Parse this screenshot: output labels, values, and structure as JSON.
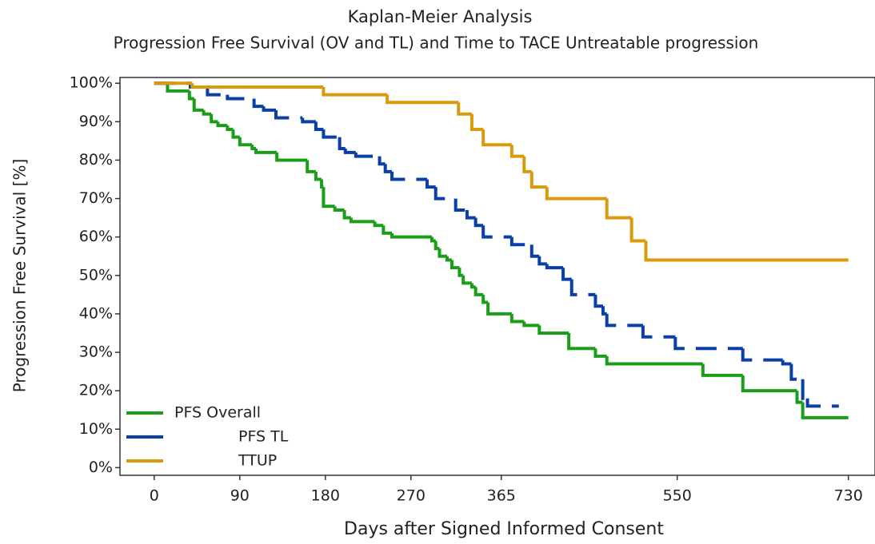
{
  "chart_data": {
    "type": "step",
    "title": "Kaplan-Meier Analysis",
    "subtitle": "Progression Free Survival (OV and TL) and  Time to TACE Untreatable progression",
    "x_label": "Days after Signed Informed Consent",
    "y_label": "Progression Free Survival [%]",
    "xlim": [
      -36,
      758
    ],
    "ylim": [
      -2,
      101.5
    ],
    "xticks": [
      0,
      90,
      180,
      270,
      365,
      550,
      730
    ],
    "yticks": [
      {
        "value": 0,
        "label": "0%"
      },
      {
        "value": 10,
        "label": "10%"
      },
      {
        "value": 20,
        "label": "20%"
      },
      {
        "value": 30,
        "label": "30%"
      },
      {
        "value": 40,
        "label": "40%"
      },
      {
        "value": 50,
        "label": "50%"
      },
      {
        "value": 60,
        "label": "60%"
      },
      {
        "value": 70,
        "label": "70%"
      },
      {
        "value": 80,
        "label": "80%"
      },
      {
        "value": 90,
        "label": "90%"
      },
      {
        "value": 100,
        "label": "100%"
      }
    ],
    "grid": false,
    "legend": "lower left",
    "series": [
      {
        "name": "PFS Overall",
        "color": "#1a9e1a",
        "dash": false,
        "x": [
          0,
          14,
          37,
          42,
          52,
          60,
          67,
          77,
          83,
          90,
          103,
          107,
          129,
          161,
          170,
          176,
          178,
          190,
          200,
          207,
          232,
          241,
          250,
          292,
          296,
          300,
          308,
          313,
          321,
          325,
          334,
          338,
          346,
          351,
          376,
          389,
          405,
          436,
          464,
          476,
          577,
          619,
          676,
          682,
          730
        ],
        "values": [
          100,
          98,
          96,
          93,
          92,
          90,
          89,
          88,
          86,
          84,
          83,
          82,
          80,
          77,
          75,
          73,
          68,
          67,
          65,
          64,
          63,
          61,
          60,
          59,
          57,
          55,
          54,
          52,
          50,
          48,
          47,
          45,
          43,
          40,
          38,
          37,
          35,
          31,
          29,
          27,
          24,
          20,
          17,
          13,
          13
        ]
      },
      {
        "name": "PFS TL",
        "color": "#0a3fa8",
        "dash": true,
        "x": [
          0,
          38,
          56,
          77,
          105,
          115,
          128,
          156,
          170,
          178,
          195,
          201,
          212,
          237,
          243,
          250,
          287,
          296,
          317,
          329,
          338,
          346,
          376,
          397,
          405,
          413,
          430,
          439,
          464,
          472,
          476,
          514,
          548,
          619,
          661,
          670,
          682,
          687,
          720
        ],
        "values": [
          100,
          99,
          97,
          96,
          94,
          93,
          91,
          90,
          88,
          86,
          83,
          82,
          81,
          79,
          77,
          75,
          73,
          70,
          67,
          65,
          63,
          60,
          58,
          55,
          53,
          52,
          49,
          45,
          42,
          40,
          37,
          34,
          31,
          28,
          27,
          23,
          18,
          16,
          16
        ]
      },
      {
        "name": "TTUP",
        "color": "#d99a0e",
        "dash": false,
        "x": [
          0,
          40,
          178,
          245,
          320,
          334,
          346,
          376,
          389,
          397,
          413,
          476,
          502,
          517,
          730
        ],
        "values": [
          100,
          99,
          97,
          95,
          92,
          88,
          84,
          81,
          77,
          73,
          70,
          65,
          59,
          54,
          54
        ]
      }
    ]
  }
}
